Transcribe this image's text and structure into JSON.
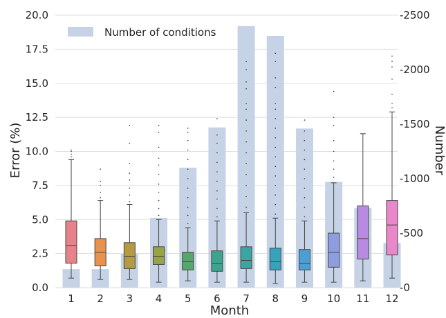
{
  "chart_data": {
    "type": "box",
    "categories": [
      "1",
      "2",
      "3",
      "4",
      "5",
      "6",
      "7",
      "8",
      "9",
      "10",
      "11",
      "12"
    ],
    "xlabel": "Month",
    "ylabel_left": "Error (%)",
    "ylabel_right": "Number",
    "ylim_left": [
      0,
      20
    ],
    "ylim_right": [
      0,
      2500
    ],
    "yticks_left": [
      "0.0",
      "2.5",
      "5.0",
      "7.5",
      "10.0",
      "12.5",
      "15.0",
      "17.5",
      "20.0"
    ],
    "yticks_right": [
      "0",
      "500",
      "1000",
      "1500",
      "2000",
      "2500"
    ],
    "grid": true,
    "legend": {
      "label": "Number of conditions",
      "placement": "top-left"
    },
    "bar_series": {
      "name": "Number of conditions",
      "color": "#c6d2e5",
      "values": [
        170,
        170,
        310,
        640,
        1100,
        1470,
        2400,
        2310,
        1460,
        970,
        730,
        410
      ]
    },
    "box_series": [
      {
        "month": "1",
        "whisker_low": 0.7,
        "q1": 1.8,
        "median": 3.1,
        "q3": 4.9,
        "whisker_high": 9.4,
        "color": "#e8828a",
        "outliers": [
          9.6,
          9.8,
          10.0,
          10.1
        ]
      },
      {
        "month": "2",
        "whisker_low": 0.6,
        "q1": 1.6,
        "median": 2.6,
        "q3": 3.6,
        "whisker_high": 6.4,
        "color": "#e8924d",
        "outliers": [
          6.6,
          7.0,
          7.5,
          7.8,
          8.7
        ]
      },
      {
        "month": "3",
        "whisker_low": 0.6,
        "q1": 1.4,
        "median": 2.3,
        "q3": 3.3,
        "whisker_high": 6.1,
        "color": "#b59a44",
        "outliers": [
          6.3,
          6.8,
          7.3,
          7.9,
          8.4,
          9.1,
          10.6,
          11.9
        ]
      },
      {
        "month": "4",
        "whisker_low": 0.4,
        "q1": 1.7,
        "median": 2.3,
        "q3": 3.0,
        "whisker_high": 5.0,
        "color": "#98a443",
        "outliers": [
          5.3,
          5.8,
          6.4,
          7.0,
          7.6,
          8.3,
          9.0,
          9.5,
          10.3,
          11.4,
          11.9
        ]
      },
      {
        "month": "5",
        "whisker_low": 0.5,
        "q1": 1.3,
        "median": 1.9,
        "q3": 2.6,
        "whisker_high": 4.4,
        "color": "#56a769",
        "outliers": [
          4.7,
          5.3,
          5.9,
          6.6,
          7.3,
          8.0,
          8.7,
          9.4,
          10.1,
          10.8,
          11.4,
          11.7
        ]
      },
      {
        "month": "6",
        "whisker_low": 0.4,
        "q1": 1.2,
        "median": 1.8,
        "q3": 2.7,
        "whisker_high": 4.9,
        "color": "#3ca58f",
        "outliers": [
          5.2,
          5.8,
          6.5,
          7.1,
          7.8,
          8.5,
          9.2,
          9.9,
          10.6,
          11.2,
          12.4
        ]
      },
      {
        "month": "7",
        "whisker_low": 0.4,
        "q1": 1.4,
        "median": 2.0,
        "q3": 3.0,
        "whisker_high": 5.5,
        "color": "#3aa6a3",
        "outliers": [
          5.9,
          6.7,
          7.5,
          8.3,
          9.1,
          9.9,
          10.7,
          11.5,
          12.3,
          13.1,
          13.5,
          14.6,
          15.1,
          16.0,
          16.6
        ]
      },
      {
        "month": "8",
        "whisker_low": 0.3,
        "q1": 1.3,
        "median": 1.9,
        "q3": 2.9,
        "whisker_high": 5.1,
        "color": "#3aa1bb",
        "outliers": [
          5.4,
          6.1,
          6.8,
          7.5,
          8.2,
          8.9,
          9.6,
          10.3,
          11.0,
          11.7,
          12.4,
          13.1,
          13.5,
          14.7,
          15.4,
          16.6,
          17.2
        ]
      },
      {
        "month": "9",
        "whisker_low": 0.4,
        "q1": 1.3,
        "median": 1.8,
        "q3": 2.8,
        "whisker_high": 4.9,
        "color": "#4c9fd3",
        "outliers": [
          5.2,
          5.9,
          6.6,
          7.3,
          8.0,
          8.7,
          9.4,
          10.1,
          10.8,
          11.5,
          12.3
        ]
      },
      {
        "month": "10",
        "whisker_low": 0.4,
        "q1": 1.5,
        "median": 2.6,
        "q3": 4.0,
        "whisker_high": 7.7,
        "color": "#8e9ce0",
        "outliers": [
          8.1,
          8.7,
          9.3,
          10.0,
          10.8,
          11.9,
          12.5,
          14.4
        ]
      },
      {
        "month": "11",
        "whisker_low": 0.5,
        "q1": 2.1,
        "median": 3.6,
        "q3": 6.0,
        "whisker_high": 11.3,
        "color": "#b98be0",
        "outliers": []
      },
      {
        "month": "12",
        "whisker_low": 0.7,
        "q1": 2.4,
        "median": 4.6,
        "q3": 6.4,
        "whisker_high": 12.9,
        "color": "#e887c9",
        "outliers": [
          13.2,
          13.5,
          14.2,
          15.3,
          16.2,
          16.6,
          17.0
        ]
      }
    ]
  }
}
